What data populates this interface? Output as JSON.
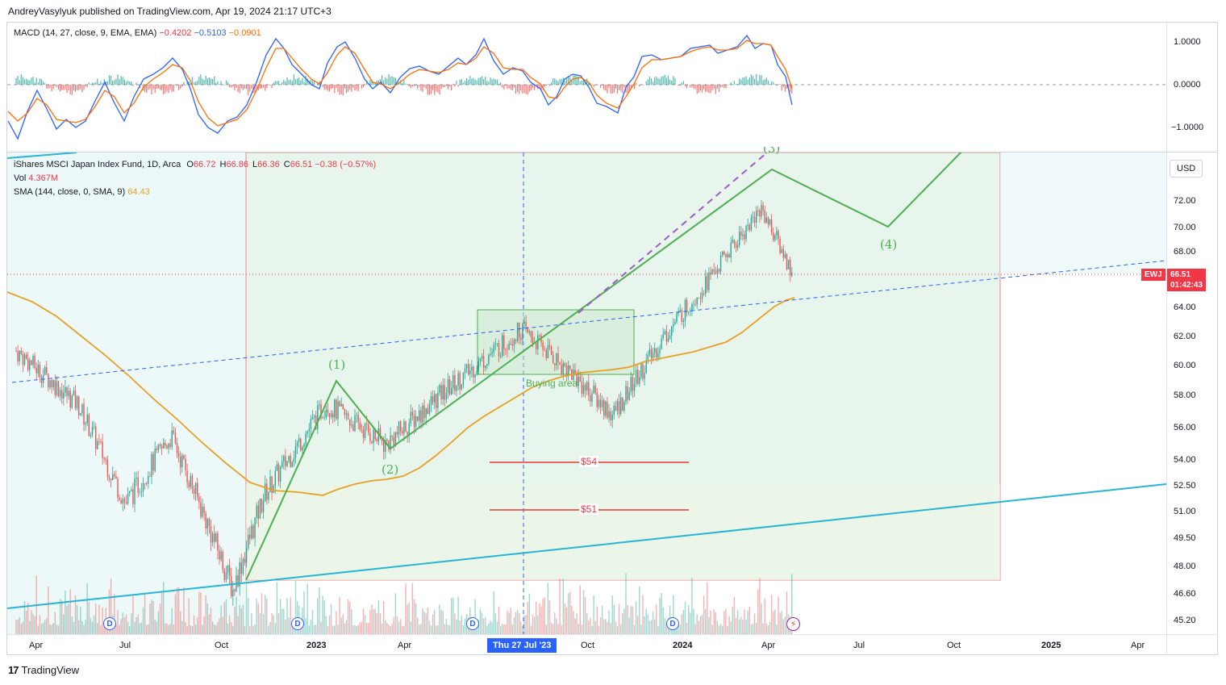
{
  "publisher_line": "AndreyVasylyuk published on TradingView.com, Apr 19, 2024 21:17 UTC+3",
  "branding": "TradingView",
  "macd": {
    "name": "MACD (14, 27, close, 9, EMA, EMA)",
    "macd_value": "−0.4202",
    "signal_value": "−0.5103",
    "hist_value": "−0.0901",
    "axis": [
      "1.0000",
      "0.0000",
      "−1.0000"
    ],
    "colors": {
      "macd": "#2962ff",
      "signal": "#ff6d00",
      "hist_pos": "#26a69a",
      "hist_neg": "#ef5350"
    }
  },
  "main": {
    "symbol_line": "iShares MSCI Japan Index Fund, 1D, Arca",
    "o_label": "O",
    "o": "66.72",
    "h_label": "H",
    "h": "66.86",
    "l_label": "L",
    "l": "66.36",
    "c_label": "C",
    "c": "66.51",
    "change": "−0.38 (−0.57%)",
    "vol_label": "Vol",
    "vol": "4.367M",
    "sma_label": "SMA (144, close, 0, SMA, 9)",
    "sma": "64.43",
    "currency": "USD",
    "ticker": "EWJ",
    "last_price": "66.51",
    "countdown": "01:42:43"
  },
  "price_axis": [
    "72.00",
    "70.00",
    "68.00",
    "64.00",
    "62.00",
    "60.00",
    "58.00",
    "56.00",
    "54.00",
    "52.50",
    "51.00",
    "49.50",
    "48.00",
    "46.60",
    "45.20"
  ],
  "time_axis": [
    {
      "label": "Apr",
      "bold": false
    },
    {
      "label": "Jul",
      "bold": false
    },
    {
      "label": "Oct",
      "bold": false
    },
    {
      "label": "2023",
      "bold": true
    },
    {
      "label": "Apr",
      "bold": false
    },
    {
      "label": "Oct",
      "bold": false
    },
    {
      "label": "2024",
      "bold": true
    },
    {
      "label": "Apr",
      "bold": false
    },
    {
      "label": "Jul",
      "bold": false
    },
    {
      "label": "Oct",
      "bold": false
    },
    {
      "label": "2025",
      "bold": true
    },
    {
      "label": "Apr",
      "bold": false
    }
  ],
  "crosshair_date": "Thu 27 Jul '23",
  "annotations": {
    "wave1": "(1)",
    "wave2": "(2)",
    "wave3": "(3)",
    "wave4": "(4)",
    "buying_area": "Buying area",
    "level_54": "$54",
    "level_51": "$51"
  },
  "markers": {
    "dividend": "D",
    "earnings_icon": "lightning-icon"
  },
  "colors": {
    "up": "#26a69a",
    "down": "#ef5350",
    "sma": "#e8a023",
    "wave": "#4caf50",
    "trend_cyan": "#26b5d4",
    "accent_red": "#f23645",
    "blue": "#2962ff"
  },
  "chart_data": {
    "type": "line",
    "title": "",
    "x": [
      "2022-03-15",
      "2022-05-15",
      "2022-07-01",
      "2022-08-15",
      "2022-10-15",
      "2022-11-15",
      "2023-01-15",
      "2023-03-15",
      "2023-05-15",
      "2023-07-27",
      "2023-09-15",
      "2023-10-25",
      "2023-12-15",
      "2024-02-01",
      "2024-03-20",
      "2024-04-19"
    ],
    "series": [
      {
        "values": [
          61.0,
          57.5,
          51.5,
          55.5,
          46.8,
          52.0,
          57.5,
          55.0,
          58.5,
          62.5,
          59.5,
          56.8,
          62.0,
          66.5,
          71.5,
          66.51
        ]
      }
    ],
    "sma_144_end": 64.43,
    "ylim": [
      44.5,
      74.0
    ],
    "log_scale": true,
    "grid": false
  }
}
